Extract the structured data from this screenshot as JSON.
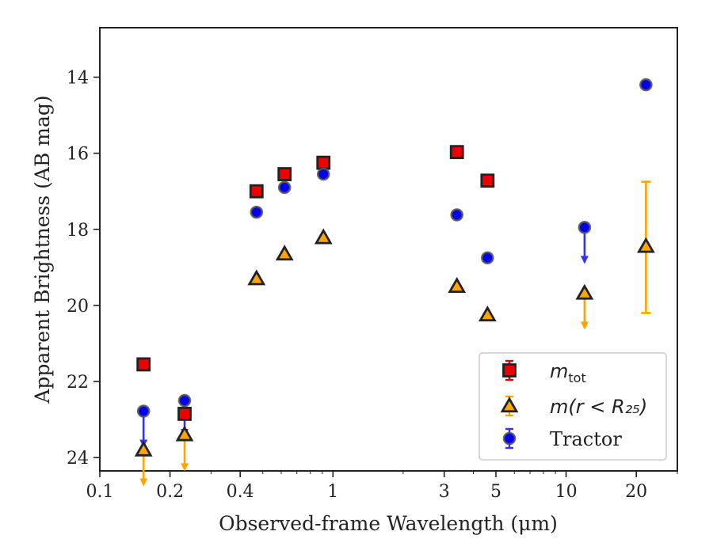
{
  "chart_data": {
    "type": "scatter",
    "xlabel": "Observed-frame Wavelength (μm)",
    "ylabel": "Apparent Brightness (AB mag)",
    "xscale": "log",
    "xlim": [
      0.1,
      30
    ],
    "ylim": [
      24.35,
      12.7
    ],
    "yinverted": true,
    "x_ticks": [
      {
        "value": 0.1,
        "label": "0.1"
      },
      {
        "value": 0.2,
        "label": "0.2"
      },
      {
        "value": 0.4,
        "label": "0.4"
      },
      {
        "value": 1,
        "label": "1"
      },
      {
        "value": 3,
        "label": "3"
      },
      {
        "value": 5,
        "label": "5"
      },
      {
        "value": 10,
        "label": "10"
      },
      {
        "value": 20,
        "label": "20"
      }
    ],
    "y_ticks": [
      {
        "value": 14,
        "label": "14"
      },
      {
        "value": 16,
        "label": "16"
      },
      {
        "value": 18,
        "label": "18"
      },
      {
        "value": 20,
        "label": "20"
      },
      {
        "value": 22,
        "label": "22"
      },
      {
        "value": 24,
        "label": "24"
      }
    ],
    "legend": {
      "position": "lower-right",
      "entries": [
        {
          "series": "mtot",
          "main": "m",
          "sub": "tot",
          "rest": ""
        },
        {
          "series": "mr25",
          "main": "m",
          "sub": "",
          "rest": "(r < R₂₅)"
        },
        {
          "series": "tractor",
          "main": "",
          "sub": "",
          "rest": "Tractor"
        }
      ]
    },
    "series": [
      {
        "id": "mtot",
        "name": "m_tot",
        "marker": "square",
        "color": "#ee0000",
        "edge": "#222222",
        "errcolor": "#dd0000",
        "points": [
          {
            "x": 0.154,
            "y": 21.55
          },
          {
            "x": 0.231,
            "y": 22.85
          },
          {
            "x": 0.47,
            "y": 17.0
          },
          {
            "x": 0.62,
            "y": 16.55
          },
          {
            "x": 0.91,
            "y": 16.25
          },
          {
            "x": 3.4,
            "y": 15.97
          },
          {
            "x": 4.6,
            "y": 16.72
          }
        ]
      },
      {
        "id": "mr25",
        "name": "m(r < R25)",
        "marker": "triangle",
        "color": "#ffa500",
        "edge": "#222222",
        "errcolor": "#ffa500",
        "points": [
          {
            "x": 0.154,
            "y": 23.8,
            "lower_limit": true
          },
          {
            "x": 0.231,
            "y": 23.4,
            "lower_limit": true
          },
          {
            "x": 0.47,
            "y": 19.3
          },
          {
            "x": 0.62,
            "y": 18.65
          },
          {
            "x": 0.91,
            "y": 18.22
          },
          {
            "x": 3.4,
            "y": 19.5
          },
          {
            "x": 4.6,
            "y": 20.25
          },
          {
            "x": 12,
            "y": 19.68,
            "lower_limit": true
          },
          {
            "x": 22,
            "y": 18.45,
            "err_lo": 16.75,
            "err_hi": 20.2
          }
        ]
      },
      {
        "id": "tractor",
        "name": "Tractor",
        "marker": "circle",
        "color": "#0000ee",
        "edge": "#555555",
        "errcolor": "#3333ee",
        "points": [
          {
            "x": 0.154,
            "y": 22.78,
            "lower_limit": true
          },
          {
            "x": 0.231,
            "y": 22.5,
            "lower_limit": true
          },
          {
            "x": 0.47,
            "y": 17.55
          },
          {
            "x": 0.62,
            "y": 16.9
          },
          {
            "x": 0.91,
            "y": 16.55
          },
          {
            "x": 3.4,
            "y": 17.62
          },
          {
            "x": 4.6,
            "y": 18.75
          },
          {
            "x": 12,
            "y": 17.95,
            "lower_limit": true
          },
          {
            "x": 22,
            "y": 14.2
          }
        ]
      }
    ]
  }
}
